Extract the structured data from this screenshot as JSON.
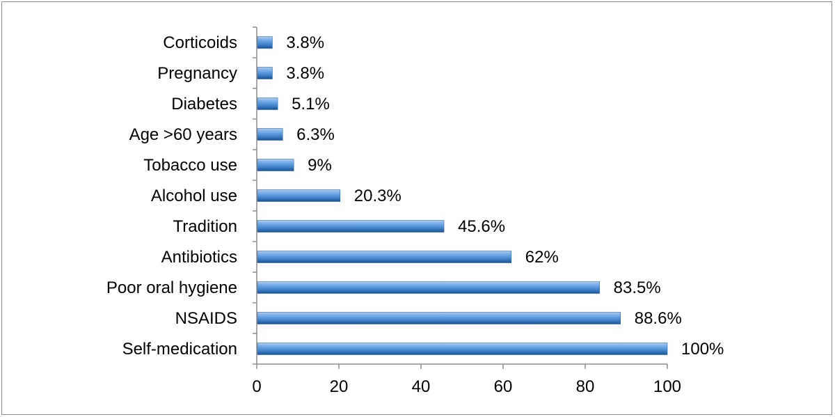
{
  "chart_data": {
    "type": "bar",
    "orientation": "horizontal",
    "title": "",
    "xlabel": "",
    "ylabel": "",
    "categories": [
      "Self-medication",
      "NSAIDS",
      "Poor oral hygiene",
      "Antibiotics",
      "Tradition",
      "Alcohol use",
      "Tobacco use",
      "Age >60 years",
      "Diabetes",
      "Pregnancy",
      "Corticoids"
    ],
    "values": [
      100,
      88.6,
      83.5,
      62,
      45.6,
      20.3,
      9,
      6.3,
      5.1,
      3.8,
      3.8
    ],
    "data_labels": [
      "100%",
      "88.6%",
      "83.5%",
      "62%",
      "45.6%",
      "20.3%",
      "9%",
      "6.3%",
      "5.1%",
      "3.8%",
      "3.8%"
    ],
    "xlim": [
      0,
      100
    ],
    "xticks": [
      0,
      20,
      40,
      60,
      80,
      100
    ],
    "grid": false,
    "legend": "none",
    "bar_color": "#4f8fd6"
  }
}
